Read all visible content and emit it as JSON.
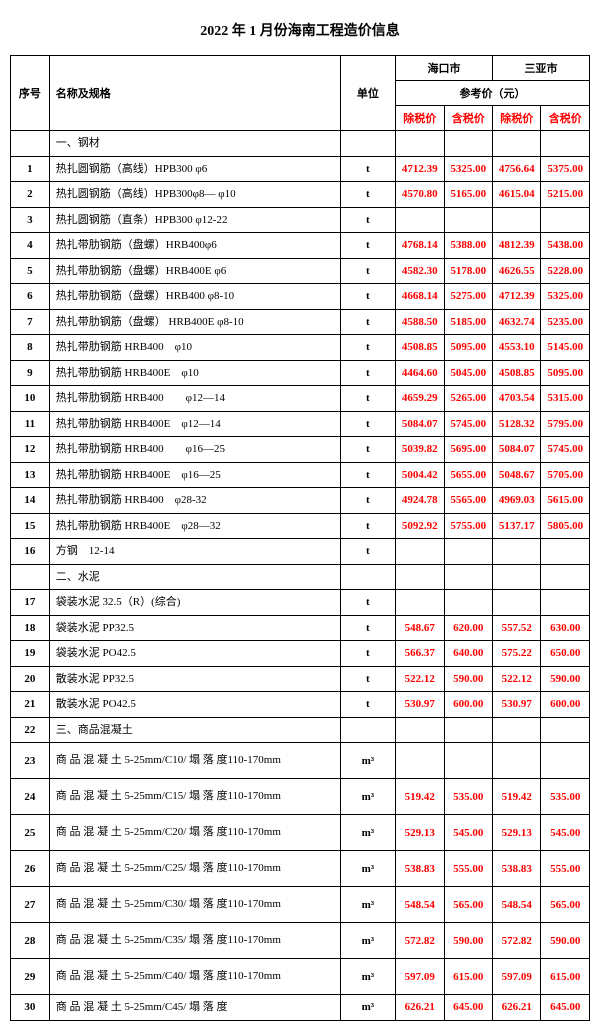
{
  "title": "2022 年 1 月份海南工程造价信息",
  "headers": {
    "seq": "序号",
    "name": "名称及规格",
    "unit": "单位",
    "city1": "海口市",
    "city2": "三亚市",
    "refPrice": "参考价（元）",
    "exTax": "除税价",
    "incTax": "含税价"
  },
  "colors": {
    "price": "#ff0000",
    "text": "#000000",
    "border": "#000000",
    "background": "#ffffff"
  },
  "rows": [
    {
      "type": "section",
      "name": "一、钢材"
    },
    {
      "seq": "1",
      "name": "热扎圆钢筋（高线）HPB300 φ6",
      "unit": "t",
      "p1": "4712.39",
      "p2": "5325.00",
      "p3": "4756.64",
      "p4": "5375.00"
    },
    {
      "seq": "2",
      "name": "热扎圆钢筋（高线）HPB300φ8— φ10",
      "unit": "t",
      "p1": "4570.80",
      "p2": "5165.00",
      "p3": "4615.04",
      "p4": "5215.00"
    },
    {
      "seq": "3",
      "name": "热扎圆钢筋（直条）HPB300 φ12-22",
      "unit": "t",
      "p1": "",
      "p2": "",
      "p3": "",
      "p4": ""
    },
    {
      "seq": "4",
      "name": "热扎带肋钢筋（盘螺）HRB400φ6",
      "unit": "t",
      "p1": "4768.14",
      "p2": "5388.00",
      "p3": "4812.39",
      "p4": "5438.00"
    },
    {
      "seq": "5",
      "name": "热扎带肋钢筋（盘螺）HRB400E φ6",
      "unit": "t",
      "p1": "4582.30",
      "p2": "5178.00",
      "p3": "4626.55",
      "p4": "5228.00"
    },
    {
      "seq": "6",
      "name": "热扎带肋钢筋（盘螺）HRB400 φ8-10",
      "unit": "t",
      "p1": "4668.14",
      "p2": "5275.00",
      "p3": "4712.39",
      "p4": "5325.00"
    },
    {
      "seq": "7",
      "name": "热扎带肋钢筋（盘螺） HRB400E φ8-10",
      "unit": "t",
      "p1": "4588.50",
      "p2": "5185.00",
      "p3": "4632.74",
      "p4": "5235.00"
    },
    {
      "seq": "8",
      "name": "热扎带肋钢筋 HRB400　φ10",
      "unit": "t",
      "p1": "4508.85",
      "p2": "5095.00",
      "p3": "4553.10",
      "p4": "5145.00"
    },
    {
      "seq": "9",
      "name": "热扎带肋钢筋 HRB400E　φ10",
      "unit": "t",
      "p1": "4464.60",
      "p2": "5045.00",
      "p3": "4508.85",
      "p4": "5095.00"
    },
    {
      "seq": "10",
      "name": "热扎带肋钢筋 HRB400　　φ12—14",
      "unit": "t",
      "p1": "4659.29",
      "p2": "5265.00",
      "p3": "4703.54",
      "p4": "5315.00"
    },
    {
      "seq": "11",
      "name": "热扎带肋钢筋 HRB400E　φ12—14",
      "unit": "t",
      "p1": "5084.07",
      "p2": "5745.00",
      "p3": "5128.32",
      "p4": "5795.00"
    },
    {
      "seq": "12",
      "name": "热扎带肋钢筋 HRB400　　φ16—25",
      "unit": "t",
      "p1": "5039.82",
      "p2": "5695.00",
      "p3": "5084.07",
      "p4": "5745.00"
    },
    {
      "seq": "13",
      "name": "热扎带肋钢筋 HRB400E　φ16—25",
      "unit": "t",
      "p1": "5004.42",
      "p2": "5655.00",
      "p3": "5048.67",
      "p4": "5705.00"
    },
    {
      "seq": "14",
      "name": "热扎带肋钢筋 HRB400　φ28-32",
      "unit": "t",
      "p1": "4924.78",
      "p2": "5565.00",
      "p3": "4969.03",
      "p4": "5615.00"
    },
    {
      "seq": "15",
      "name": "热扎带肋钢筋 HRB400E　φ28—32",
      "unit": "t",
      "p1": "5092.92",
      "p2": "5755.00",
      "p3": "5137.17",
      "p4": "5805.00"
    },
    {
      "seq": "16",
      "name": "方钢　12-14",
      "unit": "t",
      "p1": "",
      "p2": "",
      "p3": "",
      "p4": ""
    },
    {
      "type": "section",
      "name": "二、水泥"
    },
    {
      "seq": "17",
      "name": "袋装水泥 32.5（R）(综合)",
      "unit": "t",
      "p1": "",
      "p2": "",
      "p3": "",
      "p4": ""
    },
    {
      "seq": "18",
      "name": "袋装水泥 PP32.5",
      "unit": "t",
      "p1": "548.67",
      "p2": "620.00",
      "p3": "557.52",
      "p4": "630.00"
    },
    {
      "seq": "19",
      "name": "袋装水泥 PO42.5",
      "unit": "t",
      "p1": "566.37",
      "p2": "640.00",
      "p3": "575.22",
      "p4": "650.00"
    },
    {
      "seq": "20",
      "name": "散装水泥 PP32.5",
      "unit": "t",
      "p1": "522.12",
      "p2": "590.00",
      "p3": "522.12",
      "p4": "590.00"
    },
    {
      "seq": "21",
      "name": "散装水泥 PO42.5",
      "unit": "t",
      "p1": "530.97",
      "p2": "600.00",
      "p3": "530.97",
      "p4": "600.00"
    },
    {
      "seq": "22",
      "type": "section-seq",
      "name": "三、商品混凝土"
    },
    {
      "seq": "23",
      "name": "商 品 混 凝 土 5-25mm/C10/ 塌 落 度110-170mm",
      "unit": "m³",
      "p1": "",
      "p2": "",
      "p3": "",
      "p4": "",
      "tall": true
    },
    {
      "seq": "24",
      "name": "商 品 混 凝 土 5-25mm/C15/ 塌 落 度110-170mm",
      "unit": "m³",
      "p1": "519.42",
      "p2": "535.00",
      "p3": "519.42",
      "p4": "535.00",
      "tall": true
    },
    {
      "seq": "25",
      "name": "商 品 混 凝 土 5-25mm/C20/ 塌 落 度110-170mm",
      "unit": "m³",
      "p1": "529.13",
      "p2": "545.00",
      "p3": "529.13",
      "p4": "545.00",
      "tall": true
    },
    {
      "seq": "26",
      "name": "商 品 混 凝 土 5-25mm/C25/ 塌 落 度110-170mm",
      "unit": "m³",
      "p1": "538.83",
      "p2": "555.00",
      "p3": "538.83",
      "p4": "555.00",
      "tall": true
    },
    {
      "seq": "27",
      "name": "商 品 混 凝 土 5-25mm/C30/ 塌 落 度110-170mm",
      "unit": "m³",
      "p1": "548.54",
      "p2": "565.00",
      "p3": "548.54",
      "p4": "565.00",
      "tall": true
    },
    {
      "seq": "28",
      "name": "商 品 混 凝 土 5-25mm/C35/ 塌 落 度110-170mm",
      "unit": "m³",
      "p1": "572.82",
      "p2": "590.00",
      "p3": "572.82",
      "p4": "590.00",
      "tall": true
    },
    {
      "seq": "29",
      "name": "商 品 混 凝 土 5-25mm/C40/ 塌 落 度110-170mm",
      "unit": "m³",
      "p1": "597.09",
      "p2": "615.00",
      "p3": "597.09",
      "p4": "615.00",
      "tall": true
    },
    {
      "seq": "30",
      "name": "商 品 混 凝 土 5-25mm/C45/ 塌 落 度",
      "unit": "m³",
      "p1": "626.21",
      "p2": "645.00",
      "p3": "626.21",
      "p4": "645.00"
    }
  ]
}
